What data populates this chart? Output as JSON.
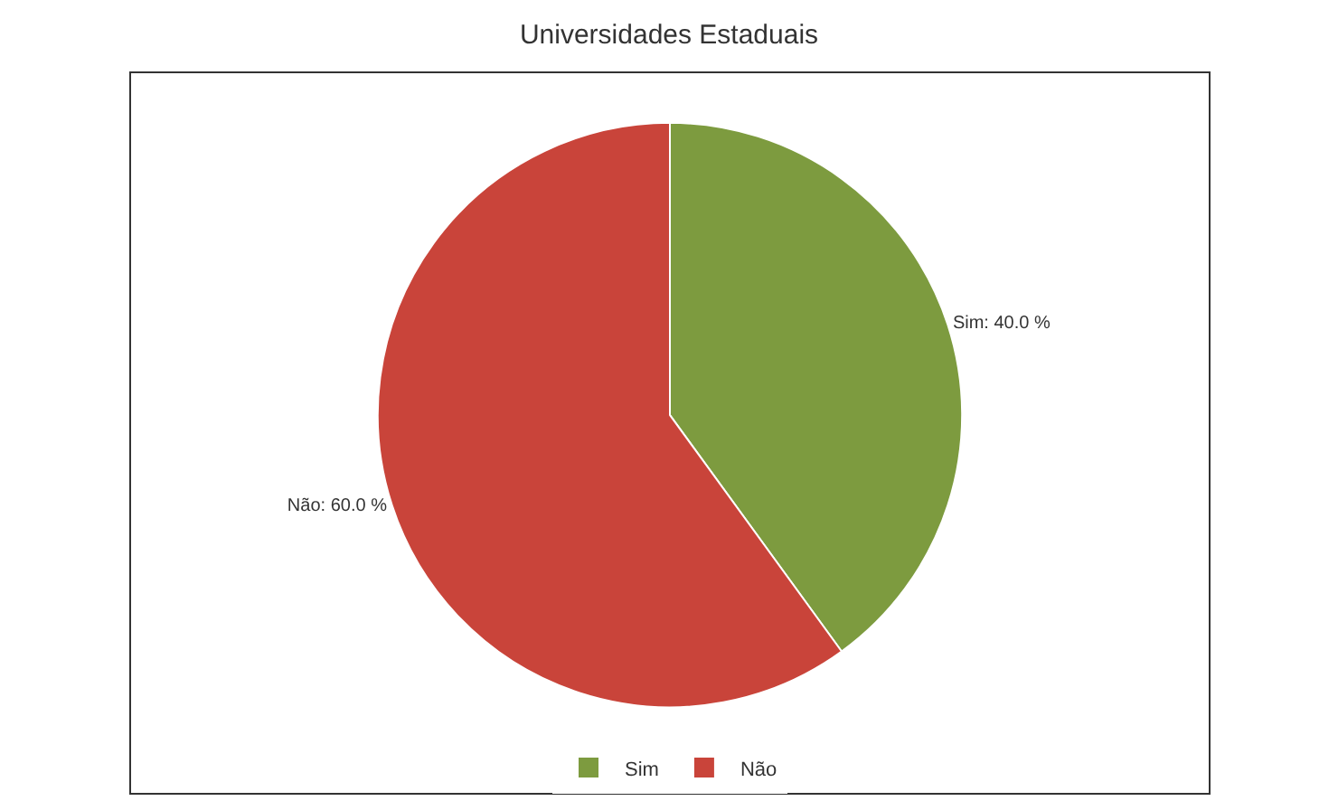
{
  "chart_data": {
    "type": "pie",
    "title": "Universidades Estaduais",
    "categories": [
      "Sim",
      "Não"
    ],
    "values": [
      40,
      60
    ],
    "colors": [
      "#7d9b3f",
      "#c9443a"
    ],
    "value_labels": [
      "Sim: 40.0 %",
      "Não: 60.0 %"
    ],
    "legend": "bottom"
  }
}
